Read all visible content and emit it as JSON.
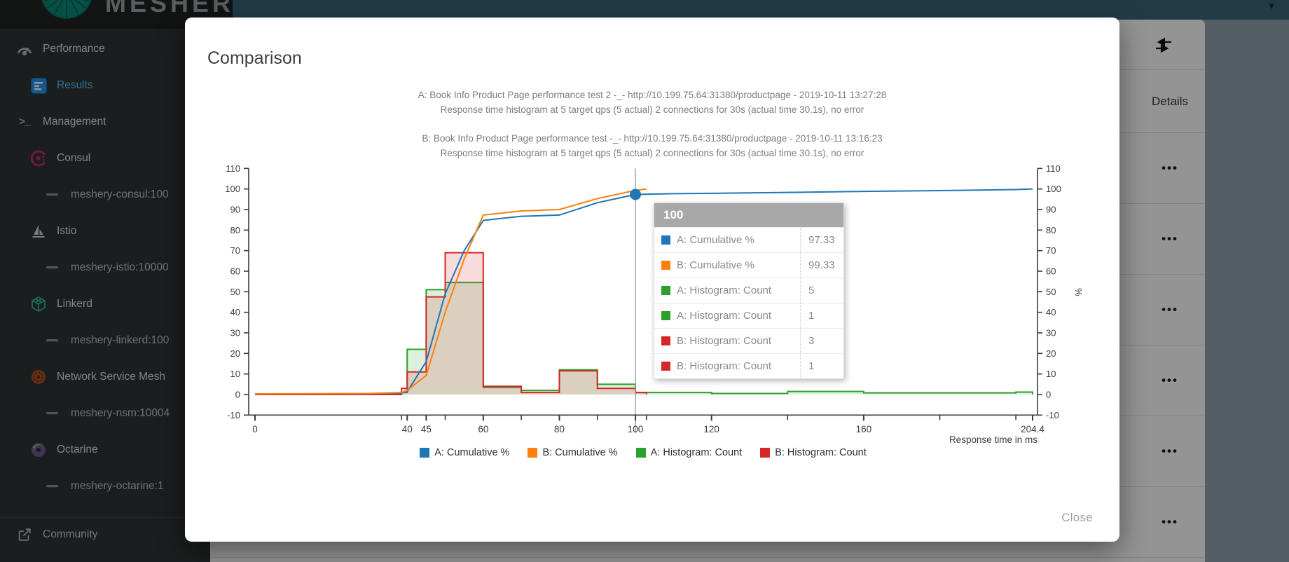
{
  "app": {
    "sidebar": {
      "logo_text": "MESHERY",
      "items": [
        {
          "label": "Performance",
          "icon": "gauge-icon",
          "level": 1,
          "selected": false
        },
        {
          "label": "Results",
          "icon": "results-icon",
          "level": 2,
          "selected": true
        },
        {
          "label": "Management",
          "icon": "terminal-icon",
          "level": 1,
          "selected": false
        },
        {
          "label": "Consul",
          "icon": "consul-icon",
          "level": 2,
          "selected": false
        },
        {
          "label": "meshery-consul:100",
          "icon": "dash-icon",
          "level": 3,
          "selected": false
        },
        {
          "label": "Istio",
          "icon": "istio-icon",
          "level": 2,
          "selected": false
        },
        {
          "label": "meshery-istio:10000",
          "icon": "dash-icon",
          "level": 3,
          "selected": false
        },
        {
          "label": "Linkerd",
          "icon": "linkerd-icon",
          "level": 2,
          "selected": false
        },
        {
          "label": "meshery-linkerd:100",
          "icon": "dash-icon",
          "level": 3,
          "selected": false
        },
        {
          "label": "Network Service Mesh",
          "icon": "nsm-icon",
          "level": 2,
          "selected": false
        },
        {
          "label": "meshery-nsm:10004",
          "icon": "dash-icon",
          "level": 3,
          "selected": false
        },
        {
          "label": "Octarine",
          "icon": "octarine-icon",
          "level": 2,
          "selected": false
        },
        {
          "label": "meshery-octarine:1",
          "icon": "dash-icon",
          "level": 3,
          "selected": false
        }
      ],
      "footer_item": {
        "label": "Community",
        "icon": "external-link-icon"
      }
    },
    "table": {
      "header": "Details",
      "row_menu_icon": "ellipsis-icon",
      "rows": 6
    }
  },
  "modal": {
    "title": "Comparison",
    "close_label": "Close"
  },
  "chart_data": {
    "type": "histogram+cumulative-line",
    "titles": [
      "A: Book Info Product Page performance test 2 -_- http://10.199.75.64:31380/productpage - 2019-10-11 13:27:28",
      "Response time histogram at 5 target qps (5 actual) 2 connections for 30s (actual time 30.1s), no error",
      "B: Book Info Product Page performance test -_- http://10.199.75.64:31380/productpage - 2019-10-11 13:16:23",
      "Response time histogram at 5 target qps (5 actual) 2 connections for 30s (actual time 30.1s), no error"
    ],
    "xlabel": "Response time in ms",
    "y2label": "%",
    "xlim": [
      0,
      204.4
    ],
    "ylim": [
      -10,
      110
    ],
    "y_ticks": [
      -10,
      0,
      10,
      20,
      30,
      40,
      50,
      60,
      70,
      80,
      90,
      100,
      110
    ],
    "x_ticks_labeled": [
      {
        "v": 0,
        "label": "0"
      },
      {
        "v": 40,
        "label": "40"
      },
      {
        "v": 45,
        "label": "45"
      },
      {
        "v": 60,
        "label": "60"
      },
      {
        "v": 80,
        "label": "80"
      },
      {
        "v": 100,
        "label": "100"
      },
      {
        "v": 120,
        "label": "120"
      },
      {
        "v": 160,
        "label": "160"
      },
      {
        "v": 204.4,
        "label": "204.4"
      }
    ],
    "x_ticks_minor": [
      38.5,
      50,
      70,
      90,
      102.9,
      140,
      180,
      200
    ],
    "series": [
      {
        "name": "A: Cumulative %",
        "type": "line",
        "color": "#1f77b4",
        "axis": "right",
        "points": [
          [
            0,
            0.3
          ],
          [
            30,
            0.4
          ],
          [
            38.5,
            0.7
          ],
          [
            40,
            1.3
          ],
          [
            45,
            16
          ],
          [
            50,
            49
          ],
          [
            55,
            70
          ],
          [
            60,
            84.7
          ],
          [
            70,
            86.7
          ],
          [
            80,
            87.3
          ],
          [
            90,
            93.3
          ],
          [
            100,
            97.33
          ],
          [
            110,
            97.7
          ],
          [
            120,
            97.9
          ],
          [
            140,
            98.3
          ],
          [
            160,
            98.8
          ],
          [
            180,
            99.2
          ],
          [
            200,
            99.7
          ],
          [
            204.4,
            100
          ]
        ]
      },
      {
        "name": "B: Cumulative %",
        "type": "line",
        "color": "#ff7f0e",
        "axis": "right",
        "points": [
          [
            0,
            0.3
          ],
          [
            30,
            0.5
          ],
          [
            38.5,
            1
          ],
          [
            40,
            2
          ],
          [
            45,
            9.3
          ],
          [
            50,
            40
          ],
          [
            55,
            66
          ],
          [
            60,
            87.3
          ],
          [
            70,
            89.3
          ],
          [
            80,
            90
          ],
          [
            90,
            95.3
          ],
          [
            100,
            99.33
          ],
          [
            102.9,
            100
          ]
        ]
      },
      {
        "name": "A: Histogram: Count",
        "type": "histogram",
        "color": "#2ca02c",
        "axis": "left",
        "buckets": [
          [
            38.5,
            40,
            1
          ],
          [
            40,
            45,
            22
          ],
          [
            45,
            50,
            51
          ],
          [
            50,
            60,
            54.5
          ],
          [
            60,
            70,
            3.5
          ],
          [
            70,
            80,
            2
          ],
          [
            80,
            90,
            12
          ],
          [
            90,
            100,
            5
          ],
          [
            100,
            120,
            1
          ],
          [
            120,
            140,
            0.5
          ],
          [
            140,
            160,
            1.5
          ],
          [
            160,
            200,
            0.8
          ],
          [
            200,
            204.4,
            1.2
          ]
        ]
      },
      {
        "name": "B: Histogram: Count",
        "type": "histogram",
        "color": "#d62728",
        "axis": "left",
        "buckets": [
          [
            38.5,
            40,
            3
          ],
          [
            40,
            45,
            11
          ],
          [
            45,
            50,
            47.5
          ],
          [
            50,
            60,
            69
          ],
          [
            60,
            70,
            4
          ],
          [
            70,
            80,
            1
          ],
          [
            80,
            90,
            11.5
          ],
          [
            90,
            100,
            3
          ],
          [
            100,
            102.9,
            1
          ]
        ]
      }
    ],
    "crosshair": {
      "x": 100,
      "dot_y": 97.33,
      "dot_color": "#1f77b4",
      "line_color": "#9e9e9e"
    },
    "tooltip": {
      "header": "100",
      "rows": [
        {
          "color": "#1f77b4",
          "label": "A: Cumulative %",
          "value": "97.33"
        },
        {
          "color": "#ff7f0e",
          "label": "B: Cumulative %",
          "value": "99.33"
        },
        {
          "color": "#2ca02c",
          "label": "A: Histogram: Count",
          "value": "5"
        },
        {
          "color": "#2ca02c",
          "label": "A: Histogram: Count",
          "value": "1"
        },
        {
          "color": "#d62728",
          "label": "B: Histogram: Count",
          "value": "3"
        },
        {
          "color": "#d62728",
          "label": "B: Histogram: Count",
          "value": "1"
        }
      ]
    },
    "legend": [
      {
        "label": "A: Cumulative %",
        "color": "#1f77b4"
      },
      {
        "label": "B: Cumulative %",
        "color": "#ff7f0e"
      },
      {
        "label": "A: Histogram: Count",
        "color": "#2ca02c"
      },
      {
        "label": "B: Histogram: Count",
        "color": "#d62728"
      }
    ]
  }
}
